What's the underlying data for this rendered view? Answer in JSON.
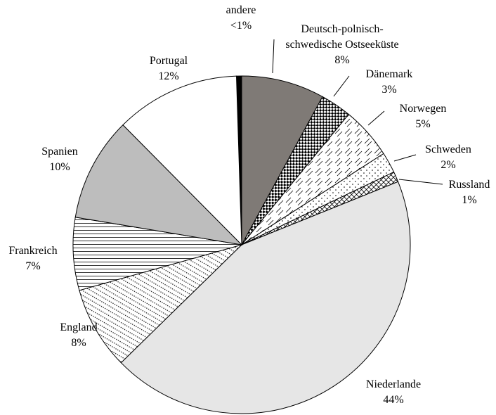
{
  "chart_data": {
    "type": "pie",
    "categories": [
      "andere",
      "Deutsch-polnisch-\nschwedische Ostseeküste",
      "Dänemark",
      "Norwegen",
      "Schweden",
      "Russland",
      "Niederlande",
      "England",
      "Frankreich",
      "Spanien",
      "Portugal"
    ],
    "values": [
      0.5,
      8,
      3,
      5,
      2,
      1,
      44,
      8,
      7,
      10,
      12
    ],
    "value_labels": [
      "<1%",
      "8%",
      "3%",
      "5%",
      "2%",
      "1%",
      "44%",
      "8%",
      "7%",
      "10%",
      "12%"
    ],
    "colors": [
      "#000000",
      "#7f7a76",
      "#000000",
      "#000000",
      "#000000",
      "#000000",
      "#e6e6e6",
      "#000000",
      "#000000",
      "#bdbdbd",
      "#ffffff"
    ],
    "fills": [
      "solid",
      "solid",
      "checker",
      "dashes",
      "dots",
      "crosshatch",
      "solid",
      "diagonal-dots",
      "hlines",
      "solid",
      "solid"
    ]
  }
}
